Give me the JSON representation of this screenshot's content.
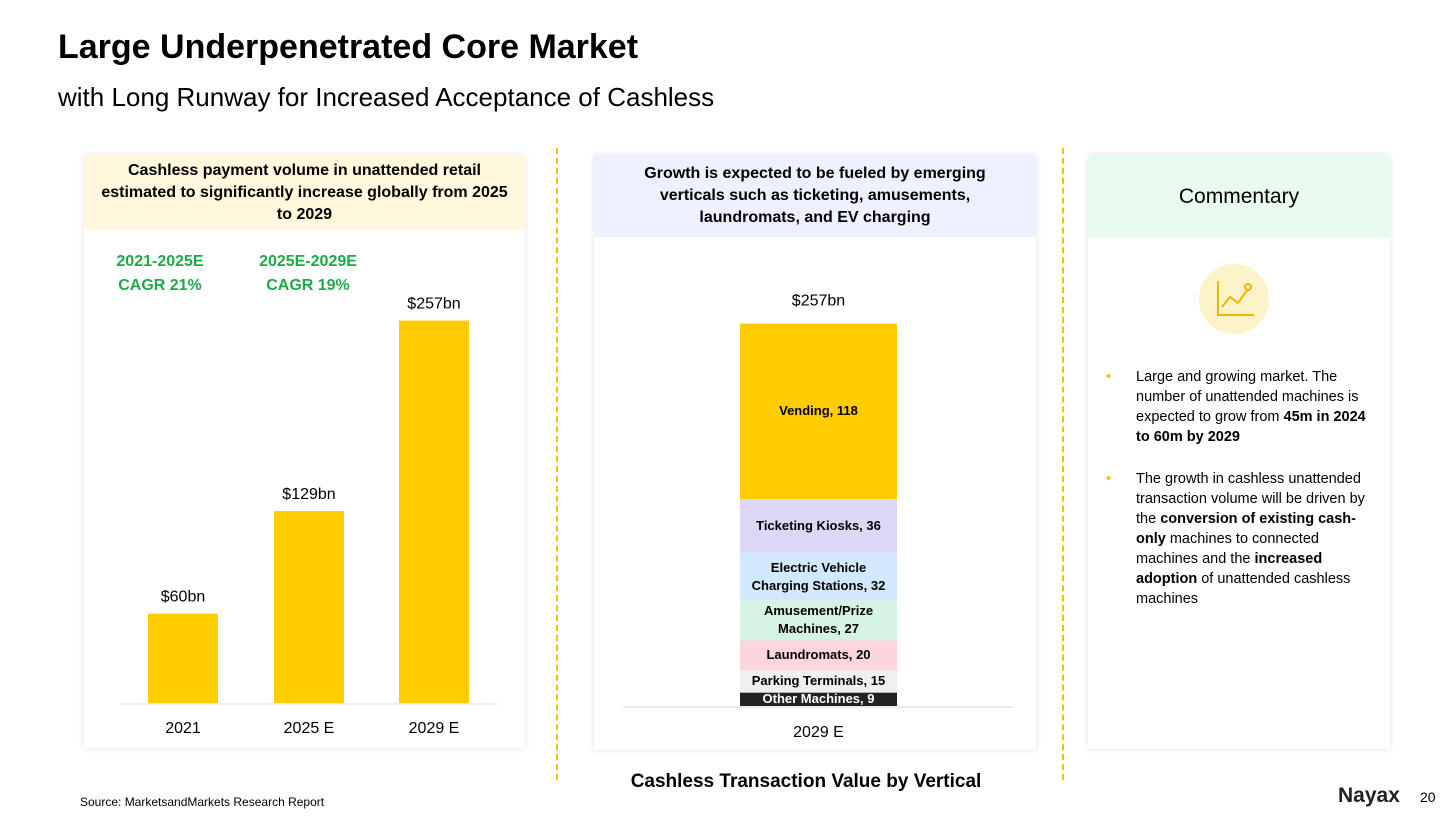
{
  "header": {
    "title": "Large Underpenetrated Core Market",
    "subtitle": "with Long Runway for Increased Acceptance of Cashless"
  },
  "chart_data": [
    {
      "type": "bar",
      "title": "Cashless payment volume in unattended retail estimated to significantly increase globally from 2025 to 2029",
      "categories": [
        "2021",
        "2025 E",
        "2029 E"
      ],
      "values": [
        60,
        129,
        257
      ],
      "value_labels": [
        "$60bn",
        "$129bn",
        "$257bn"
      ],
      "color": "#ffcc00",
      "annotations": [
        [
          "2021-2025E",
          "CAGR 21%"
        ],
        [
          "2025E-2029E",
          "CAGR 19%"
        ]
      ]
    },
    {
      "type": "stacked_bar",
      "title": "Growth is expected to be fueled by emerging verticals such as ticketing, amusements, laundromats, and EV charging",
      "categories": [
        "2029 E"
      ],
      "total_label": "$257bn",
      "x_label": "Cashless Transaction Value by Vertical",
      "series": [
        {
          "name": "Other Machines,",
          "color": "#222222",
          "values": [
            9
          ]
        },
        {
          "name": "Parking Terminals,",
          "color": "#efefef",
          "values": [
            15
          ]
        },
        {
          "name": "Laundromats,",
          "color": "#fdd6dd",
          "values": [
            20
          ]
        },
        {
          "name": "Amusement/Prize Machines,",
          "color": "#d5f3e5",
          "values": [
            27
          ]
        },
        {
          "name": "Electric Vehicle Charging Stations,",
          "color": "#d0e9fc",
          "values": [
            32
          ]
        },
        {
          "name": "Ticketing Kiosks,",
          "color": "#ddd7f7",
          "values": [
            36
          ]
        },
        {
          "name": "Vending,",
          "color": "#ffcc00",
          "values": [
            118
          ]
        }
      ]
    }
  ],
  "commentary": {
    "title": "Commentary",
    "bullets": [
      [
        {
          "text": "Large and growing market. The number of unattended machines is expected to grow from "
        },
        {
          "text": "45m in 2024 to 60m by 2029",
          "bold": true
        }
      ],
      [
        {
          "text": "The growth in cashless unattended transaction volume will be driven by the "
        },
        {
          "text": "conversion of existing cash-only",
          "bold": true
        },
        {
          "text": " machines to connected machines and the "
        },
        {
          "text": "increased adoption",
          "bold": true
        },
        {
          "text": " of unattended cashless machines"
        }
      ]
    ]
  },
  "footer": {
    "source": "Source: MarketsandMarkets Research Report",
    "logo": "Nayax",
    "page": "20"
  }
}
